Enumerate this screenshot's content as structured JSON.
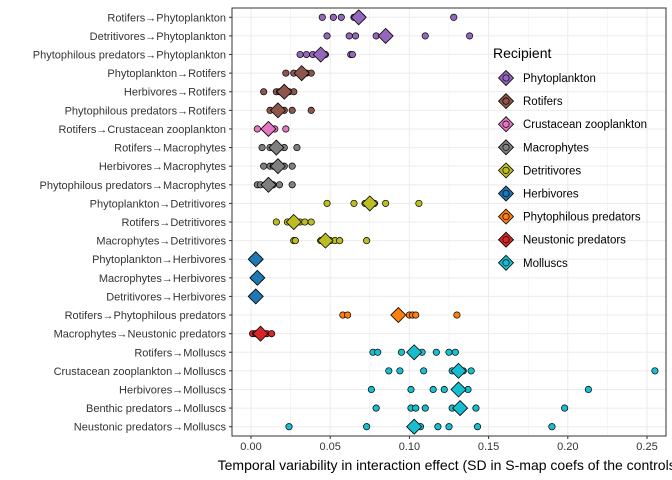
{
  "chart_data": {
    "type": "scatter",
    "title": "",
    "xlabel": "Temporal variability in interaction effect (SD in S-map coefs of the controls)",
    "ylabel": "",
    "xlim": [
      -0.012,
      0.262
    ],
    "x_ticks": [
      0.0,
      0.05,
      0.1,
      0.15,
      0.2,
      0.25
    ],
    "x_tick_labels": [
      "0.00",
      "0.05",
      "0.10",
      "0.15",
      "0.20",
      "0.25"
    ],
    "grid": true,
    "legend": {
      "title": "Recipient",
      "position": "right",
      "items": [
        {
          "name": "Phytoplankton",
          "color": "#9467bd"
        },
        {
          "name": "Rotifers",
          "color": "#8c564b"
        },
        {
          "name": "Crustacean zooplankton",
          "color": "#e377c2"
        },
        {
          "name": "Macrophytes",
          "color": "#7f7f7f"
        },
        {
          "name": "Detritivores",
          "color": "#bcbd22"
        },
        {
          "name": "Herbivores",
          "color": "#1f77b4"
        },
        {
          "name": "Phytophilous predators",
          "color": "#ff7f0e"
        },
        {
          "name": "Neustonic predators",
          "color": "#d62728"
        },
        {
          "name": "Molluscs",
          "color": "#17becf"
        }
      ]
    },
    "categories": [
      "Rotifers→Phytoplankton",
      "Detritivores→Phytoplankton",
      "Phytophilous predators→Phytoplankton",
      "Phytoplankton→Rotifers",
      "Herbivores→Rotifers",
      "Phytophilous predators→Rotifers",
      "Rotifers→Crustacean zooplankton",
      "Rotifers→Macrophytes",
      "Herbivores→Macrophytes",
      "Phytophilous predators→Macrophytes",
      "Phytoplankton→Detritivores",
      "Rotifers→Detritivores",
      "Macrophytes→Detritivores",
      "Phytoplankton→Herbivores",
      "Macrophytes→Herbivores",
      "Detritivores→Herbivores",
      "Rotifers→Phytophilous predators",
      "Macrophytes→Neustonic predators",
      "Rotifers→Molluscs",
      "Crustacean zooplankton→Molluscs",
      "Herbivores→Molluscs",
      "Benthic predators→Molluscs",
      "Neustonic predators→Molluscs"
    ],
    "rows": [
      {
        "category": "Rotifers→Phytoplankton",
        "recipient": "Phytoplankton",
        "mean": 0.068,
        "points": [
          0.045,
          0.052,
          0.057,
          0.065,
          0.07,
          0.128
        ]
      },
      {
        "category": "Detritivores→Phytoplankton",
        "recipient": "Phytoplankton",
        "mean": 0.085,
        "points": [
          0.048,
          0.062,
          0.066,
          0.079,
          0.11,
          0.138
        ]
      },
      {
        "category": "Phytophilous predators→Phytoplankton",
        "recipient": "Phytoplankton",
        "mean": 0.044,
        "points": [
          0.031,
          0.035,
          0.039,
          0.047,
          0.063,
          0.064
        ]
      },
      {
        "category": "Phytoplankton→Rotifers",
        "recipient": "Rotifers",
        "mean": 0.032,
        "points": [
          0.022,
          0.027,
          0.031,
          0.035,
          0.038
        ]
      },
      {
        "category": "Herbivores→Rotifers",
        "recipient": "Rotifers",
        "mean": 0.021,
        "points": [
          0.008,
          0.016,
          0.018,
          0.02,
          0.024,
          0.027
        ]
      },
      {
        "category": "Phytophilous predators→Rotifers",
        "recipient": "Rotifers",
        "mean": 0.017,
        "points": [
          0.012,
          0.015,
          0.018,
          0.021,
          0.026,
          0.038
        ]
      },
      {
        "category": "Rotifers→Crustacean zooplankton",
        "recipient": "Crustacean zooplankton",
        "mean": 0.011,
        "points": [
          0.004,
          0.009,
          0.012,
          0.015,
          0.022
        ]
      },
      {
        "category": "Rotifers→Macrophytes",
        "recipient": "Macrophytes",
        "mean": 0.016,
        "points": [
          0.007,
          0.012,
          0.015,
          0.018,
          0.021,
          0.029
        ]
      },
      {
        "category": "Herbivores→Macrophytes",
        "recipient": "Macrophytes",
        "mean": 0.017,
        "points": [
          0.008,
          0.012,
          0.014,
          0.019,
          0.021,
          0.026
        ]
      },
      {
        "category": "Phytophilous predators→Macrophytes",
        "recipient": "Macrophytes",
        "mean": 0.011,
        "points": [
          0.004,
          0.006,
          0.009,
          0.014,
          0.018,
          0.026
        ]
      },
      {
        "category": "Phytoplankton→Detritivores",
        "recipient": "Detritivores",
        "mean": 0.075,
        "points": [
          0.048,
          0.065,
          0.072,
          0.078,
          0.085,
          0.106
        ]
      },
      {
        "category": "Rotifers→Detritivores",
        "recipient": "Detritivores",
        "mean": 0.027,
        "points": [
          0.016,
          0.023,
          0.026,
          0.029,
          0.031,
          0.034,
          0.038
        ]
      },
      {
        "category": "Macrophytes→Detritivores",
        "recipient": "Detritivores",
        "mean": 0.047,
        "points": [
          0.027,
          0.028,
          0.044,
          0.05,
          0.053,
          0.056,
          0.073
        ]
      },
      {
        "category": "Phytoplankton→Herbivores",
        "recipient": "Herbivores",
        "mean": 0.003,
        "points": [
          0.001,
          0.002,
          0.004,
          0.005
        ]
      },
      {
        "category": "Macrophytes→Herbivores",
        "recipient": "Herbivores",
        "mean": 0.004,
        "points": [
          0.002,
          0.003,
          0.005,
          0.006
        ]
      },
      {
        "category": "Detritivores→Herbivores",
        "recipient": "Herbivores",
        "mean": 0.003,
        "points": [
          0.001,
          0.002,
          0.004
        ]
      },
      {
        "category": "Rotifers→Phytophilous predators",
        "recipient": "Phytophilous predators",
        "mean": 0.093,
        "points": [
          0.058,
          0.061,
          0.1,
          0.102,
          0.104,
          0.13
        ]
      },
      {
        "category": "Macrophytes→Neustonic predators",
        "recipient": "Neustonic predators",
        "mean": 0.006,
        "points": [
          0.001,
          0.003,
          0.005,
          0.008,
          0.01,
          0.013
        ]
      },
      {
        "category": "Rotifers→Molluscs",
        "recipient": "Molluscs",
        "mean": 0.103,
        "points": [
          0.077,
          0.08,
          0.095,
          0.108,
          0.117,
          0.125,
          0.129
        ]
      },
      {
        "category": "Crustacean zooplankton→Molluscs",
        "recipient": "Molluscs",
        "mean": 0.131,
        "points": [
          0.087,
          0.094,
          0.109,
          0.127,
          0.134,
          0.139,
          0.255
        ]
      },
      {
        "category": "Herbivores→Molluscs",
        "recipient": "Molluscs",
        "mean": 0.131,
        "points": [
          0.076,
          0.101,
          0.115,
          0.122,
          0.133,
          0.137,
          0.213
        ]
      },
      {
        "category": "Benthic predators→Molluscs",
        "recipient": "Molluscs",
        "mean": 0.132,
        "points": [
          0.079,
          0.101,
          0.104,
          0.11,
          0.127,
          0.142,
          0.198
        ]
      },
      {
        "category": "Neustonic predators→Molluscs",
        "recipient": "Molluscs",
        "mean": 0.103,
        "points": [
          0.024,
          0.073,
          0.107,
          0.118,
          0.125,
          0.143,
          0.19
        ]
      }
    ]
  }
}
